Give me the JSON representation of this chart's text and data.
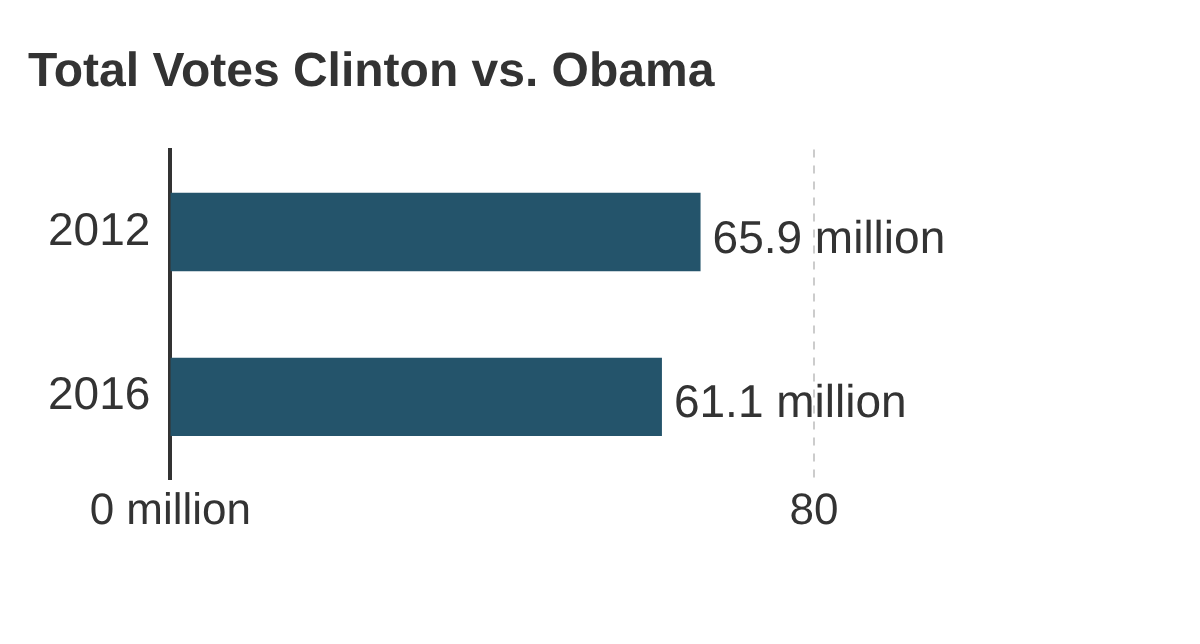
{
  "chart_data": {
    "type": "bar",
    "orientation": "horizontal",
    "title": "Total Votes Clinton vs. Obama",
    "categories": [
      "2012",
      "2016"
    ],
    "values": [
      65.9,
      61.1
    ],
    "value_labels": [
      "65.9 million",
      "61.1 million"
    ],
    "color": "#24546b",
    "xlim": [
      0,
      80
    ],
    "xticks": [
      {
        "value": 0,
        "label": "0 million"
      },
      80
    ],
    "ref_lines": [
      {
        "axis": "x",
        "value": 80,
        "color": "#cccccc",
        "line_style": "dashed"
      }
    ],
    "legend": false
  }
}
